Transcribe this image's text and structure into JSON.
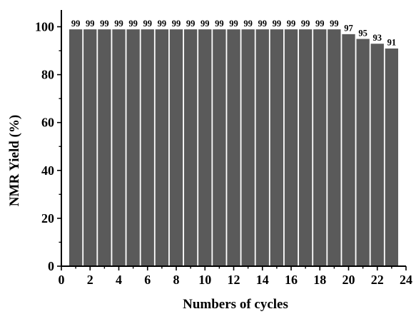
{
  "chart_data": {
    "type": "bar",
    "title": "",
    "xlabel": "Numbers of cycles",
    "ylabel": "NMR Yield (%)",
    "x": [
      1,
      2,
      3,
      4,
      5,
      6,
      7,
      8,
      9,
      10,
      11,
      12,
      13,
      14,
      15,
      16,
      17,
      18,
      19,
      20,
      21,
      22,
      23
    ],
    "values": [
      99,
      99,
      99,
      99,
      99,
      99,
      99,
      99,
      99,
      99,
      99,
      99,
      99,
      99,
      99,
      99,
      99,
      99,
      99,
      97,
      95,
      93,
      91
    ],
    "data_labels": [
      "99",
      "99",
      "99",
      "99",
      "99",
      "99",
      "99",
      "99",
      "99",
      "99",
      "99",
      "99",
      "99",
      "99",
      "99",
      "99",
      "99",
      "99",
      "99",
      "97",
      "95",
      "93",
      "91"
    ],
    "xlim": [
      0,
      24
    ],
    "ylim": [
      0,
      107
    ],
    "x_ticks": [
      0,
      2,
      4,
      6,
      8,
      10,
      12,
      14,
      16,
      18,
      20,
      22,
      24
    ],
    "x_tick_labels": [
      "0",
      "2",
      "4",
      "6",
      "8",
      "10",
      "12",
      "14",
      "16",
      "18",
      "20",
      "22",
      "24"
    ],
    "y_ticks": [
      0,
      20,
      40,
      60,
      80,
      100
    ],
    "y_tick_labels": [
      "0",
      "20",
      "40",
      "60",
      "80",
      "100"
    ],
    "grid": false,
    "legend": "none",
    "bar_color": "#5a5a5a",
    "bar_edge_color": "#ffffff"
  }
}
